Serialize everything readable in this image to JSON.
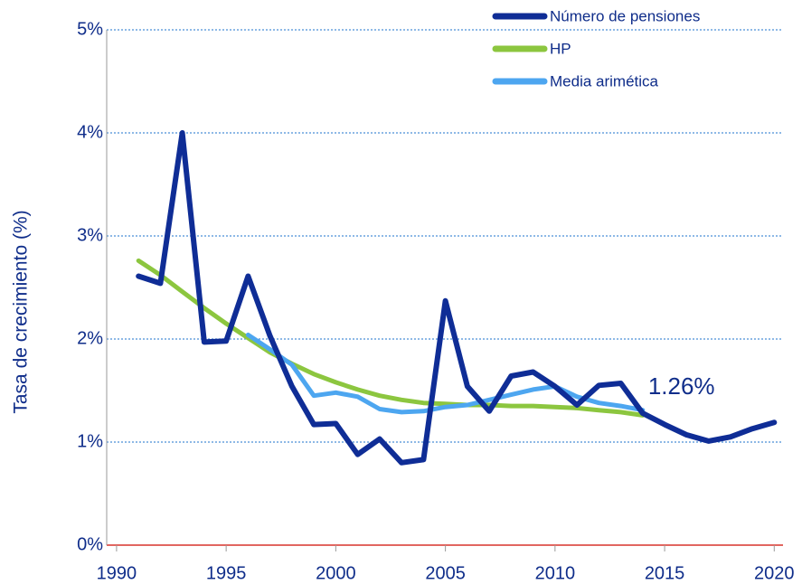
{
  "chart_data": {
    "type": "line",
    "y_label": "Tasa de crecimiento (%)",
    "x": [
      1991,
      1992,
      1993,
      1994,
      1995,
      1996,
      1997,
      1998,
      1999,
      2000,
      2001,
      2002,
      2003,
      2004,
      2005,
      2006,
      2007,
      2008,
      2009,
      2010,
      2011,
      2012,
      2013,
      2014,
      2015,
      2016,
      2017,
      2018,
      2019,
      2020
    ],
    "series": [
      {
        "name": "Número de pensiones",
        "color": "#0f2d96",
        "values": [
          2.61,
          2.54,
          4.0,
          1.97,
          1.98,
          2.61,
          2.03,
          1.54,
          1.17,
          1.18,
          0.88,
          1.03,
          0.8,
          0.83,
          2.37,
          1.54,
          1.3,
          1.64,
          1.68,
          1.54,
          1.36,
          1.55,
          1.57,
          1.28,
          1.17,
          1.07,
          1.01,
          1.05,
          1.13,
          1.19
        ]
      },
      {
        "name": "HP",
        "color": "#8cc63f",
        "values": [
          2.76,
          2.62,
          2.46,
          2.3,
          2.15,
          2.01,
          1.87,
          1.76,
          1.66,
          1.58,
          1.51,
          1.45,
          1.41,
          1.38,
          1.37,
          1.36,
          1.36,
          1.35,
          1.35,
          1.34,
          1.33,
          1.31,
          1.29,
          1.26,
          null,
          null,
          null,
          null,
          null,
          null
        ]
      },
      {
        "name": "Media arimética",
        "color": "#4da6f0",
        "values": [
          null,
          null,
          null,
          null,
          null,
          2.04,
          1.9,
          1.75,
          1.45,
          1.48,
          1.44,
          1.32,
          1.29,
          1.3,
          1.34,
          1.36,
          1.41,
          1.46,
          1.51,
          1.54,
          1.44,
          1.38,
          1.35,
          1.31,
          null,
          null,
          null,
          null,
          null,
          null
        ]
      }
    ],
    "annotation": "1.26%",
    "xlim": [
      1989.55,
      2020.4
    ],
    "xticks": [
      1990,
      1995,
      2000,
      2005,
      2010,
      2015,
      2020
    ],
    "ylim": [
      0,
      5
    ],
    "yticks": [
      {
        "value": 0,
        "label": "0%"
      },
      {
        "value": 1,
        "label": "1%"
      },
      {
        "value": 2,
        "label": "2%"
      },
      {
        "value": 3,
        "label": "3%"
      },
      {
        "value": 4,
        "label": "4%"
      },
      {
        "value": 5,
        "label": "5%"
      }
    ],
    "grid": true,
    "grid_color": "#4a8fd6",
    "zero_line_color": "#d9342b",
    "legend": "top-right"
  }
}
